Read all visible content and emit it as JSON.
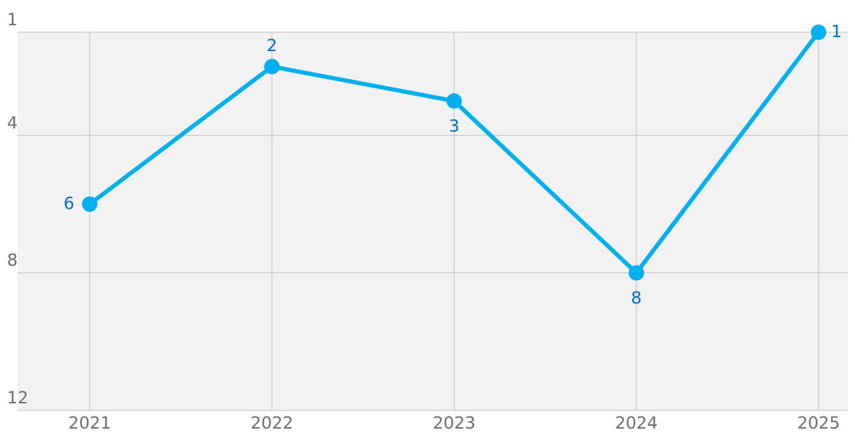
{
  "chart_data": {
    "type": "line",
    "categories": [
      "2021",
      "2022",
      "2023",
      "2024",
      "2025"
    ],
    "values": [
      6,
      2,
      3,
      8,
      1
    ],
    "color": "#00b0f0",
    "label_color": "#0070c0",
    "ylim": [
      12,
      1
    ],
    "yticks": [
      1,
      4,
      8,
      12
    ],
    "grid": true
  }
}
